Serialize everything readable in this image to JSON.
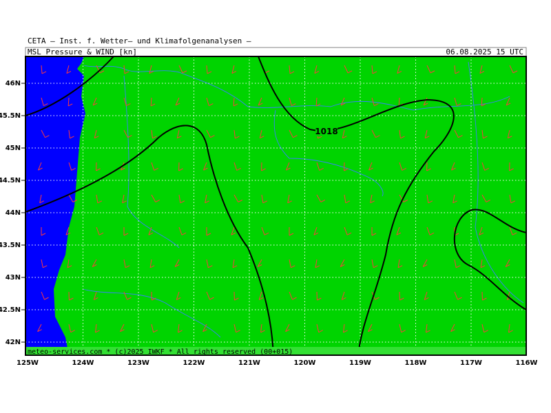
{
  "header": {
    "institute": "CETA – Inst. f. Wetter– und Klimafolgenanalysen –",
    "product": "MSL_Pressure_&_WIND [kn]",
    "valid": "06.08.2025 15 UTC"
  },
  "lat_labels": [
    "46N",
    "45.5N",
    "45N",
    "44.5N",
    "44N",
    "43.5N",
    "43N",
    "42.5N",
    "42N"
  ],
  "lon_labels": [
    "125W",
    "124W",
    "123W",
    "122W",
    "121W",
    "120W",
    "119W",
    "118W",
    "117W",
    "116W"
  ],
  "contour_label": "1018",
  "footer": "meteo-services.com * (c)2025 IWKF * All rights reserved (00+015)"
}
